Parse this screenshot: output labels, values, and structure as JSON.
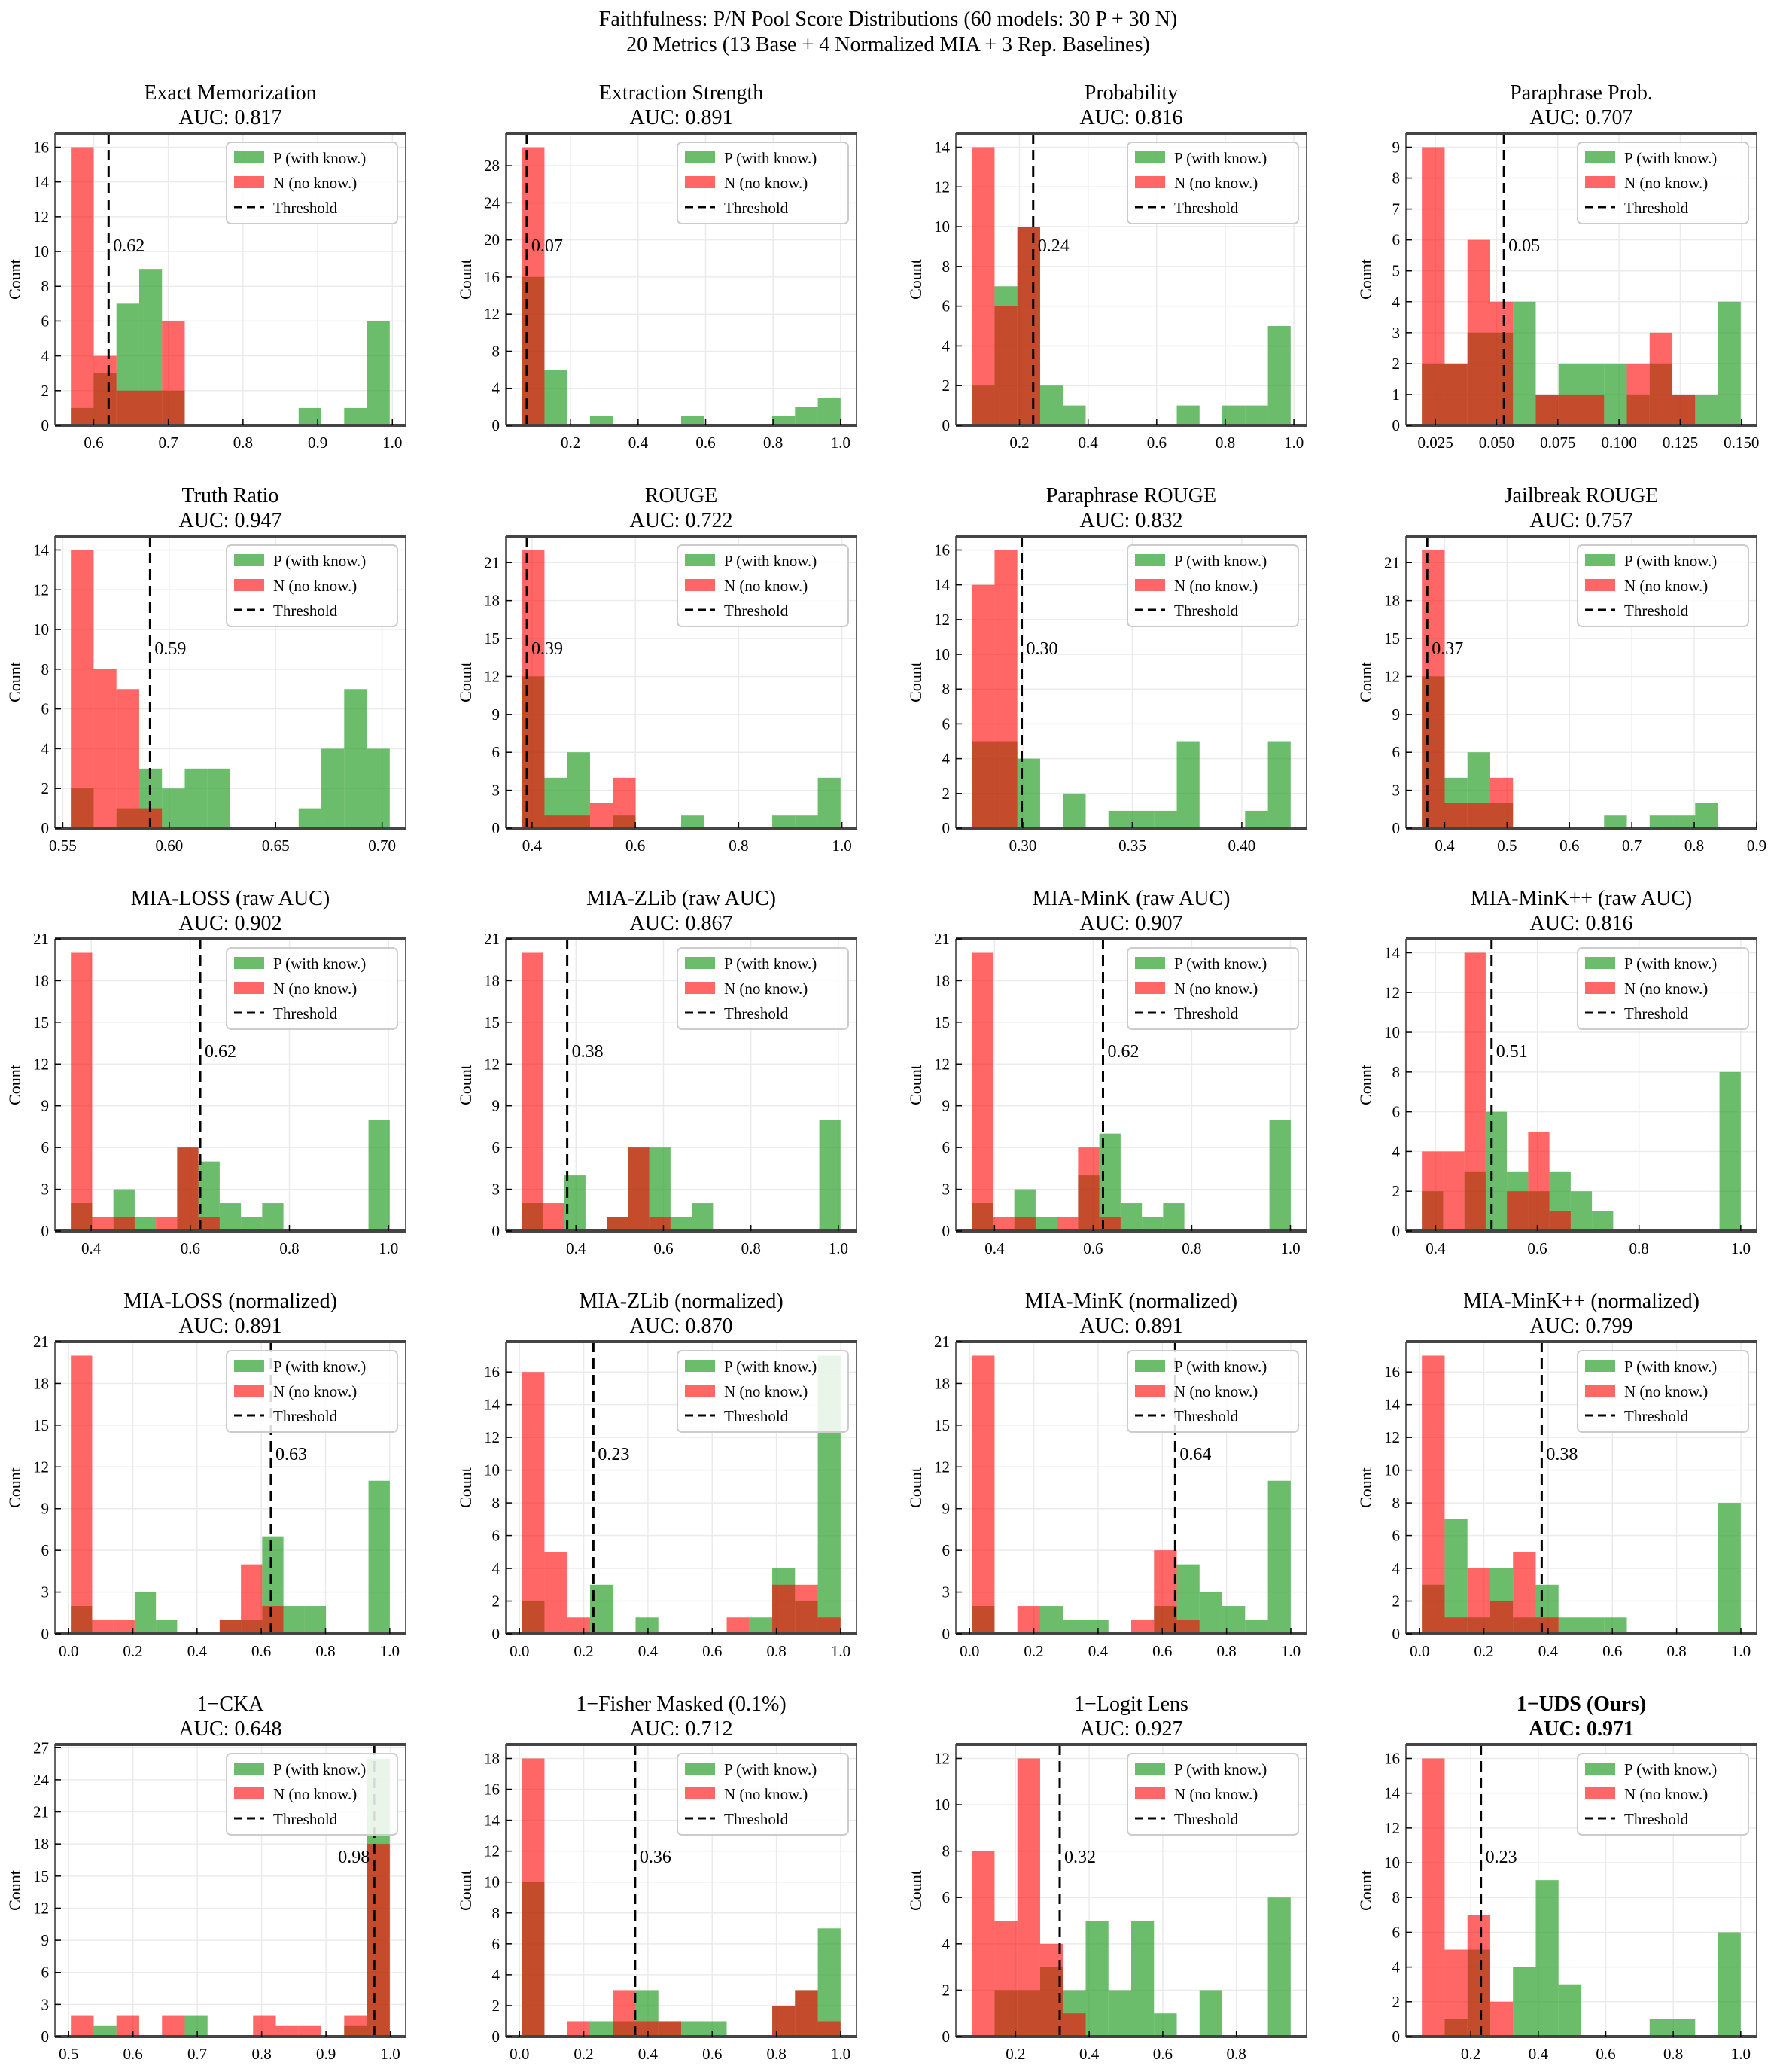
{
  "suptitle": {
    "line1": "Faithfulness: P/N Pool Score Distributions (60 models: 30 P + 30 N)",
    "line2": "20 Metrics (13 Base + 4 Normalized MIA + 3 Rep. Baselines)"
  },
  "legend": {
    "p": "P (with know.)",
    "n": "N (no know.)",
    "threshold": "Threshold"
  },
  "ylabel": "Count",
  "colors": {
    "p": "#2ca02c",
    "n": "#ff0000",
    "threshold": "#000000"
  },
  "chart_data": [
    {
      "type": "bar",
      "title": "Exact Memorization",
      "auc": "AUC: 0.817",
      "threshold": 0.62,
      "threshold_label": "0.62",
      "bin_start": 0.5695,
      "bin_width": 0.0305,
      "p": [
        1,
        3,
        7,
        9,
        2,
        0,
        0,
        0,
        0,
        0,
        1,
        0,
        1,
        6
      ],
      "n": [
        16,
        4,
        2,
        2,
        6,
        0,
        0,
        0,
        0,
        0,
        0,
        0,
        0,
        0
      ],
      "xticks": [
        "0.6",
        "0.7",
        "0.8",
        "0.9",
        "1.0"
      ],
      "yticks": [
        0,
        2,
        4,
        6,
        8,
        10,
        12,
        14,
        16
      ]
    },
    {
      "type": "bar",
      "title": "Extraction Strength",
      "auc": "AUC: 0.891",
      "threshold": 0.07,
      "threshold_label": "0.07",
      "bin_start": 0.055,
      "bin_width": 0.0675,
      "p": [
        16,
        6,
        0,
        1,
        0,
        0,
        0,
        1,
        0,
        0,
        0,
        1,
        2,
        3
      ],
      "n": [
        30,
        0,
        0,
        0,
        0,
        0,
        0,
        0,
        0,
        0,
        0,
        0,
        0,
        0
      ],
      "xticks": [
        "0.2",
        "0.4",
        "0.6",
        "0.8",
        "1.0"
      ],
      "yticks": [
        0,
        4,
        8,
        12,
        16,
        20,
        24,
        28
      ]
    },
    {
      "type": "bar",
      "title": "Probability",
      "auc": "AUC: 0.816",
      "threshold": 0.24,
      "threshold_label": "0.24",
      "bin_start": 0.061,
      "bin_width": 0.0664,
      "p": [
        2,
        7,
        10,
        2,
        1,
        0,
        0,
        0,
        0,
        1,
        0,
        1,
        1,
        5
      ],
      "n": [
        14,
        6,
        10,
        0,
        0,
        0,
        0,
        0,
        0,
        0,
        0,
        0,
        0,
        0
      ],
      "xticks": [
        "0.2",
        "0.4",
        "0.6",
        "0.8",
        "1.0"
      ],
      "yticks": [
        0,
        2,
        4,
        6,
        8,
        10,
        12,
        14
      ]
    },
    {
      "type": "bar",
      "title": "Paraphrase Prob.",
      "auc": "AUC: 0.707",
      "threshold": 0.053,
      "threshold_label": "0.05",
      "bin_start": 0.0195,
      "bin_width": 0.0093,
      "p": [
        2,
        2,
        3,
        3,
        4,
        1,
        2,
        2,
        2,
        1,
        2,
        1,
        1,
        4
      ],
      "n": [
        9,
        2,
        6,
        4,
        0,
        1,
        1,
        1,
        0,
        2,
        3,
        1,
        0,
        0
      ],
      "xticks": [
        "0.025",
        "0.050",
        "0.075",
        "0.100",
        "0.125",
        "0.150"
      ],
      "yticks": [
        0,
        1,
        2,
        3,
        4,
        5,
        6,
        7,
        8,
        9
      ]
    },
    {
      "type": "bar",
      "title": "Truth Ratio",
      "auc": "AUC: 0.947",
      "threshold": 0.591,
      "threshold_label": "0.59",
      "bin_start": 0.5538,
      "bin_width": 0.0107,
      "p": [
        2,
        0,
        1,
        3,
        2,
        3,
        3,
        0,
        0,
        0,
        1,
        4,
        7,
        4
      ],
      "n": [
        14,
        8,
        7,
        1,
        0,
        0,
        0,
        0,
        0,
        0,
        0,
        0,
        0,
        0
      ],
      "xticks": [
        "0.55",
        "0.60",
        "0.65",
        "0.70"
      ],
      "yticks": [
        0,
        2,
        4,
        6,
        8,
        10,
        12,
        14
      ]
    },
    {
      "type": "bar",
      "title": "ROUGE",
      "auc": "AUC: 0.722",
      "threshold": 0.39,
      "threshold_label": "0.39",
      "bin_start": 0.38,
      "bin_width": 0.0441,
      "p": [
        12,
        4,
        6,
        0,
        1,
        0,
        0,
        1,
        0,
        0,
        0,
        1,
        1,
        4
      ],
      "n": [
        22,
        1,
        1,
        2,
        4,
        0,
        0,
        0,
        0,
        0,
        0,
        0,
        0,
        0
      ],
      "xticks": [
        "0.4",
        "0.6",
        "0.8",
        "1.0"
      ],
      "yticks": [
        0,
        3,
        6,
        9,
        12,
        15,
        18,
        21
      ]
    },
    {
      "type": "bar",
      "title": "Paraphrase ROUGE",
      "auc": "AUC: 0.832",
      "threshold": 0.2995,
      "threshold_label": "0.30",
      "bin_start": 0.2767,
      "bin_width": 0.0104,
      "p": [
        5,
        5,
        4,
        0,
        2,
        0,
        1,
        1,
        1,
        5,
        0,
        0,
        1,
        5
      ],
      "n": [
        14,
        16,
        0,
        0,
        0,
        0,
        0,
        0,
        0,
        0,
        0,
        0,
        0,
        0
      ],
      "xticks": [
        "0.30",
        "0.35",
        "0.40"
      ],
      "yticks": [
        0,
        2,
        4,
        6,
        8,
        10,
        12,
        14,
        16
      ]
    },
    {
      "type": "bar",
      "title": "Jailbreak ROUGE",
      "auc": "AUC: 0.757",
      "threshold": 0.372,
      "threshold_label": "0.37",
      "bin_start": 0.3635,
      "bin_width": 0.0365,
      "p": [
        12,
        4,
        6,
        2,
        0,
        0,
        0,
        0,
        1,
        0,
        1,
        1,
        2,
        0
      ],
      "n": [
        22,
        2,
        2,
        4,
        0,
        0,
        0,
        0,
        0,
        0,
        0,
        0,
        0,
        0
      ],
      "xticks": [
        "0.4",
        "0.5",
        "0.6",
        "0.7",
        "0.8",
        "0.9"
      ],
      "yticks": [
        0,
        3,
        6,
        9,
        12,
        15,
        18,
        21
      ]
    },
    {
      "type": "bar",
      "title": "MIA-LOSS (raw AUC)",
      "auc": "AUC: 0.902",
      "threshold": 0.62,
      "threshold_label": "0.62",
      "bin_start": 0.359,
      "bin_width": 0.0429,
      "p": [
        2,
        0,
        3,
        1,
        0,
        6,
        5,
        2,
        1,
        2,
        0,
        0,
        0,
        0,
        8
      ],
      "n": [
        20,
        1,
        1,
        0,
        1,
        6,
        1,
        0,
        0,
        0,
        0,
        0,
        0,
        0,
        0
      ],
      "xticks": [
        "0.4",
        "0.6",
        "0.8",
        "1.0"
      ],
      "yticks": [
        0,
        3,
        6,
        9,
        12,
        15,
        18,
        21
      ]
    },
    {
      "type": "bar",
      "title": "MIA-ZLib (raw AUC)",
      "auc": "AUC: 0.867",
      "threshold": 0.38,
      "threshold_label": "0.38",
      "bin_start": 0.276,
      "bin_width": 0.0486,
      "p": [
        2,
        0,
        4,
        0,
        1,
        6,
        6,
        1,
        2,
        0,
        0,
        0,
        0,
        0,
        8
      ],
      "n": [
        20,
        2,
        0,
        0,
        1,
        6,
        1,
        0,
        0,
        0,
        0,
        0,
        0,
        0,
        0
      ],
      "xticks": [
        "0.4",
        "0.6",
        "0.8",
        "1.0"
      ],
      "yticks": [
        0,
        3,
        6,
        9,
        12,
        15,
        18,
        21
      ]
    },
    {
      "type": "bar",
      "title": "MIA-MinK (raw AUC)",
      "auc": "AUC: 0.907",
      "threshold": 0.62,
      "threshold_label": "0.62",
      "bin_start": 0.354,
      "bin_width": 0.0431,
      "p": [
        2,
        0,
        3,
        1,
        0,
        4,
        7,
        2,
        1,
        2,
        0,
        0,
        0,
        0,
        8
      ],
      "n": [
        20,
        1,
        1,
        0,
        1,
        6,
        1,
        0,
        0,
        0,
        0,
        0,
        0,
        0,
        0
      ],
      "xticks": [
        "0.4",
        "0.6",
        "0.8",
        "1.0"
      ],
      "yticks": [
        0,
        3,
        6,
        9,
        12,
        15,
        18,
        21
      ]
    },
    {
      "type": "bar",
      "title": "MIA-MinK++ (raw AUC)",
      "auc": "AUC: 0.816",
      "threshold": 0.51,
      "threshold_label": "0.51",
      "bin_start": 0.373,
      "bin_width": 0.0418,
      "p": [
        2,
        0,
        3,
        6,
        3,
        2,
        3,
        2,
        1,
        0,
        0,
        0,
        0,
        0,
        8
      ],
      "n": [
        4,
        4,
        14,
        0,
        2,
        5,
        1,
        0,
        0,
        0,
        0,
        0,
        0,
        0,
        0
      ],
      "xticks": [
        "0.4",
        "0.6",
        "0.8",
        "1.0"
      ],
      "yticks": [
        0,
        2,
        4,
        6,
        8,
        10,
        12,
        14
      ]
    },
    {
      "type": "bar",
      "title": "MIA-LOSS (normalized)",
      "auc": "AUC: 0.891",
      "threshold": 0.63,
      "threshold_label": "0.63",
      "bin_start": 0.007,
      "bin_width": 0.0662,
      "p": [
        2,
        0,
        0,
        3,
        1,
        0,
        0,
        1,
        1,
        7,
        2,
        2,
        0,
        0,
        11
      ],
      "n": [
        20,
        1,
        1,
        0,
        0,
        0,
        0,
        1,
        5,
        2,
        0,
        0,
        0,
        0,
        0
      ],
      "xticks": [
        "0.0",
        "0.2",
        "0.4",
        "0.6",
        "0.8",
        "1.0"
      ],
      "yticks": [
        0,
        3,
        6,
        9,
        12,
        15,
        18,
        21
      ]
    },
    {
      "type": "bar",
      "title": "MIA-ZLib (normalized)",
      "auc": "AUC: 0.870",
      "threshold": 0.23,
      "threshold_label": "0.23",
      "bin_start": 0.007,
      "bin_width": 0.0709,
      "p": [
        2,
        0,
        0,
        3,
        0,
        1,
        0,
        0,
        0,
        0,
        1,
        4,
        2,
        17
      ],
      "n": [
        16,
        5,
        1,
        0,
        0,
        0,
        0,
        0,
        0,
        1,
        0,
        3,
        3,
        1
      ],
      "xticks": [
        "0.0",
        "0.2",
        "0.4",
        "0.6",
        "0.8",
        "1.0"
      ],
      "yticks": [
        0,
        2,
        4,
        6,
        8,
        10,
        12,
        14,
        16
      ]
    },
    {
      "type": "bar",
      "title": "MIA-MinK (normalized)",
      "auc": "AUC: 0.891",
      "threshold": 0.64,
      "threshold_label": "0.64",
      "bin_start": 0.007,
      "bin_width": 0.0709,
      "p": [
        2,
        0,
        0,
        2,
        1,
        1,
        0,
        0,
        2,
        5,
        3,
        2,
        1,
        11
      ],
      "n": [
        20,
        0,
        2,
        0,
        0,
        0,
        0,
        1,
        6,
        1,
        0,
        0,
        0,
        0
      ],
      "xticks": [
        "0.0",
        "0.2",
        "0.4",
        "0.6",
        "0.8",
        "1.0"
      ],
      "yticks": [
        0,
        3,
        6,
        9,
        12,
        15,
        18,
        21
      ]
    },
    {
      "type": "bar",
      "title": "MIA-MinK++ (normalized)",
      "auc": "AUC: 0.799",
      "threshold": 0.38,
      "threshold_label": "0.38",
      "bin_start": 0.007,
      "bin_width": 0.0709,
      "p": [
        3,
        7,
        1,
        4,
        1,
        3,
        1,
        1,
        1,
        0,
        0,
        0,
        0,
        8
      ],
      "n": [
        17,
        1,
        4,
        2,
        5,
        1,
        0,
        0,
        0,
        0,
        0,
        0,
        0,
        0
      ],
      "xticks": [
        "0.0",
        "0.2",
        "0.4",
        "0.6",
        "0.8",
        "1.0"
      ],
      "yticks": [
        0,
        2,
        4,
        6,
        8,
        10,
        12,
        14,
        16
      ]
    },
    {
      "type": "bar",
      "title": "1−CKA",
      "auc": "AUC: 0.648",
      "threshold": 0.975,
      "threshold_label": "0.98",
      "bin_start": 0.5035,
      "bin_width": 0.0354,
      "p": [
        0,
        1,
        0,
        0,
        0,
        2,
        0,
        0,
        0,
        0,
        0,
        0,
        1,
        26
      ],
      "n": [
        2,
        0,
        2,
        0,
        2,
        0,
        0,
        0,
        2,
        1,
        1,
        0,
        2,
        18
      ],
      "xticks": [
        "0.5",
        "0.6",
        "0.7",
        "0.8",
        "0.9",
        "1.0"
      ],
      "yticks": [
        0,
        3,
        6,
        9,
        12,
        15,
        18,
        21,
        24,
        27
      ]
    },
    {
      "type": "bar",
      "title": "1−Fisher Masked (0.1%)",
      "auc": "AUC: 0.712",
      "threshold": 0.36,
      "threshold_label": "0.36",
      "bin_start": 0.007,
      "bin_width": 0.0709,
      "p": [
        10,
        0,
        0,
        1,
        1,
        3,
        1,
        1,
        1,
        0,
        0,
        2,
        3,
        7
      ],
      "n": [
        18,
        0,
        1,
        0,
        3,
        1,
        1,
        0,
        0,
        0,
        0,
        2,
        3,
        1
      ],
      "xticks": [
        "0.0",
        "0.2",
        "0.4",
        "0.6",
        "0.8",
        "1.0"
      ],
      "yticks": [
        0,
        2,
        4,
        6,
        8,
        10,
        12,
        14,
        16,
        18
      ]
    },
    {
      "type": "bar",
      "title": "1−Logit Lens",
      "auc": "AUC: 0.927",
      "threshold": 0.32,
      "threshold_label": "0.32",
      "bin_start": 0.081,
      "bin_width": 0.0619,
      "p": [
        0,
        2,
        2,
        3,
        2,
        5,
        2,
        5,
        1,
        0,
        2,
        0,
        0,
        6
      ],
      "n": [
        8,
        5,
        12,
        4,
        1,
        0,
        0,
        0,
        0,
        0,
        0,
        0,
        0,
        0
      ],
      "xticks": [
        "0.2",
        "0.4",
        "0.6",
        "0.8"
      ],
      "yticks": [
        0,
        2,
        4,
        6,
        8,
        10,
        12
      ]
    },
    {
      "type": "bar",
      "title": "1−UDS (Ours)",
      "title_bold": true,
      "auc": "AUC: 0.971",
      "threshold": 0.23,
      "threshold_label": "0.23",
      "bin_start": 0.055,
      "bin_width": 0.0675,
      "p": [
        0,
        1,
        5,
        0,
        4,
        9,
        3,
        0,
        0,
        0,
        1,
        1,
        0,
        6
      ],
      "n": [
        16,
        5,
        7,
        2,
        0,
        0,
        0,
        0,
        0,
        0,
        0,
        0,
        0,
        0
      ],
      "xticks": [
        "0.2",
        "0.4",
        "0.6",
        "0.8",
        "1.0"
      ],
      "yticks": [
        0,
        2,
        4,
        6,
        8,
        10,
        12,
        14,
        16
      ]
    }
  ]
}
